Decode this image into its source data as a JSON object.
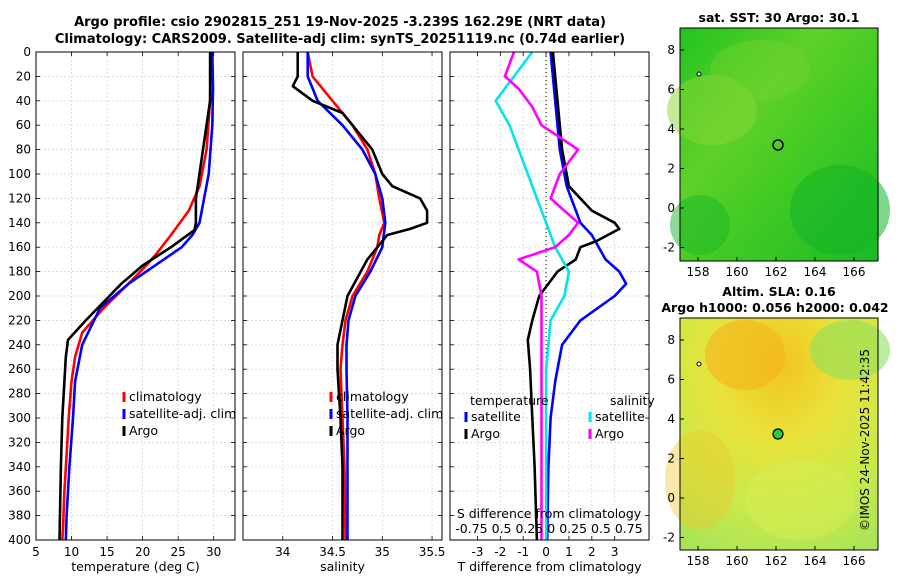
{
  "header": {
    "title_line1": "Argo profile: csio 2902815_251 19-Nov-2025 -3.239S 162.29E (NRT data)",
    "title_line2": "Climatology: CARS2009. Satellite-adj clim: synTS_20251119.nc (0.74d earlier)"
  },
  "maps": {
    "sst_title": "sat. SST: 30 Argo: 30.1",
    "sla_title_line1": "Altim. SLA: 0.16",
    "sla_title_line2": "Argo h1000: 0.056 h2000: 0.042",
    "x_ticks": [
      "158",
      "160",
      "162",
      "164",
      "166"
    ],
    "y_ticks": [
      "8",
      "6",
      "4",
      "2",
      "0",
      "-2"
    ]
  },
  "credit": "©IMOS 24-Nov-2025 11:42:35",
  "colors": {
    "climatology": "#ff0000",
    "satellite": "#0000ff",
    "argo": "#000000",
    "sal_satellite": "#00e5ee",
    "sal_argo": "#ff00ff"
  },
  "chart_data": [
    {
      "type": "line",
      "name": "temperature",
      "xlabel": "temperature (deg C)",
      "ylabel": "",
      "xlim": [
        5,
        33
      ],
      "ylim": [
        400,
        0
      ],
      "x_ticks": [
        5,
        10,
        15,
        20,
        25,
        30
      ],
      "y_ticks": [
        0,
        20,
        40,
        60,
        80,
        100,
        120,
        140,
        160,
        180,
        200,
        220,
        240,
        260,
        280,
        300,
        320,
        340,
        360,
        380,
        400
      ],
      "legend": [
        "climatology",
        "satellite-adj. clim",
        "Argo"
      ],
      "series": [
        {
          "name": "climatology",
          "depth": [
            0,
            40,
            80,
            110,
            130,
            150,
            165,
            175,
            190,
            210,
            230,
            250,
            270,
            300,
            330,
            360,
            390,
            400
          ],
          "values": [
            29.6,
            29.5,
            29,
            28,
            26.5,
            24,
            22,
            20.5,
            18,
            14.5,
            11.5,
            10.5,
            10,
            9.6,
            9.3,
            9,
            8.8,
            8.7
          ]
        },
        {
          "name": "satellite-adj. clim",
          "depth": [
            0,
            30,
            60,
            100,
            140,
            150,
            160,
            170,
            190,
            210,
            240,
            270,
            300,
            340,
            380,
            400
          ],
          "values": [
            29.8,
            29.9,
            29.8,
            29.3,
            28,
            27,
            25.5,
            23,
            18,
            14,
            11.5,
            10.5,
            10.2,
            9.7,
            9.3,
            9.2
          ]
        },
        {
          "name": "Argo",
          "depth": [
            0,
            40,
            80,
            120,
            140,
            146,
            160,
            175,
            190,
            205,
            220,
            236,
            250,
            270,
            300,
            340,
            370,
            400
          ],
          "values": [
            29.5,
            29.5,
            28.5,
            27.5,
            27.5,
            27.3,
            24,
            20,
            17,
            14.5,
            12,
            9.5,
            9.2,
            9,
            8.7,
            8.5,
            8.4,
            8.3
          ]
        }
      ]
    },
    {
      "type": "line",
      "name": "salinity",
      "xlabel": "salinity",
      "xlim": [
        33.6,
        35.6
      ],
      "ylim": [
        400,
        0
      ],
      "x_ticks": [
        34,
        34.5,
        35,
        35.5
      ],
      "legend": [
        "climatology",
        "satellite-adj. clim",
        "Argo"
      ],
      "series": [
        {
          "name": "climatology",
          "depth": [
            0,
            20,
            40,
            60,
            80,
            100,
            120,
            140,
            150,
            160,
            180,
            200,
            220,
            240,
            260,
            300,
            340,
            400
          ],
          "values": [
            34.25,
            34.3,
            34.5,
            34.7,
            34.85,
            34.93,
            34.97,
            35.02,
            34.97,
            34.95,
            34.85,
            34.7,
            34.63,
            34.6,
            34.58,
            34.6,
            34.62,
            34.63
          ]
        },
        {
          "name": "satellite-adj. clim",
          "depth": [
            0,
            20,
            40,
            60,
            80,
            100,
            120,
            140,
            160,
            180,
            200,
            220,
            240,
            260,
            300,
            340,
            400
          ],
          "values": [
            34.25,
            34.25,
            34.35,
            34.6,
            34.8,
            34.93,
            35.0,
            35.03,
            35.0,
            34.88,
            34.73,
            34.66,
            34.64,
            34.64,
            34.65,
            34.65,
            34.65
          ]
        },
        {
          "name": "Argo",
          "depth": [
            0,
            20,
            28,
            40,
            50,
            60,
            70,
            80,
            100,
            110,
            120,
            130,
            140,
            145,
            150,
            170,
            185,
            200,
            220,
            240,
            260,
            300,
            340,
            400
          ],
          "values": [
            34.15,
            34.15,
            34.1,
            34.3,
            34.6,
            34.7,
            34.8,
            34.9,
            35.0,
            35.1,
            35.38,
            35.45,
            35.45,
            35.28,
            35.05,
            34.85,
            34.75,
            34.65,
            34.6,
            34.55,
            34.55,
            34.58,
            34.6,
            34.6
          ]
        }
      ]
    },
    {
      "type": "line",
      "name": "difference",
      "xlabel": "T difference from climatology",
      "top_xlabel": "S difference from climatology",
      "xlim": [
        -4.2,
        4.5
      ],
      "ylim": [
        400,
        0
      ],
      "x_ticks": [
        -3,
        -2,
        -1,
        0,
        1,
        2,
        3
      ],
      "top_ticks": [
        "-0.75",
        "0.5",
        "0.25",
        "0",
        "0.25",
        "0.5",
        "0.75"
      ],
      "legend_titles": [
        "temperature",
        "salinity"
      ],
      "legend": [
        "satellite",
        "Argo",
        "satellite",
        "Argo"
      ],
      "series": [
        {
          "name": "temperature satellite",
          "depth": [
            0,
            40,
            80,
            110,
            140,
            150,
            160,
            170,
            180,
            190,
            200,
            220,
            240,
            270,
            300,
            340,
            400
          ],
          "values": [
            0.2,
            0.4,
            0.6,
            0.9,
            1.5,
            2,
            2.3,
            2.6,
            3.2,
            3.5,
            3,
            1.5,
            0.7,
            0.4,
            0.2,
            0.1,
            0.05
          ]
        },
        {
          "name": "temperature Argo",
          "depth": [
            0,
            40,
            80,
            110,
            130,
            140,
            145,
            155,
            160,
            170,
            180,
            200,
            220,
            236,
            260,
            300,
            340,
            400
          ],
          "values": [
            0.3,
            0.5,
            0.7,
            1,
            2,
            3,
            3.2,
            2.2,
            1.5,
            1.3,
            0.5,
            -0.3,
            -0.6,
            -0.8,
            -0.7,
            -0.6,
            -0.5,
            -0.4
          ]
        },
        {
          "name": "salinity satellite",
          "depth": [
            0,
            20,
            40,
            60,
            80,
            100,
            120,
            140,
            160,
            180,
            200,
            220,
            260,
            300,
            340,
            400
          ],
          "values": [
            -0.15,
            -0.35,
            -0.55,
            -0.4,
            -0.3,
            -0.2,
            -0.1,
            0,
            0.1,
            0.25,
            0.2,
            0.05,
            0,
            0,
            0,
            0
          ]
        },
        {
          "name": "salinity Argo",
          "depth": [
            0,
            20,
            30,
            45,
            60,
            80,
            100,
            120,
            140,
            150,
            160,
            170,
            180,
            200,
            240,
            300,
            400
          ],
          "values": [
            -0.35,
            -0.45,
            -0.3,
            -0.15,
            -0.05,
            0.35,
            0.15,
            0.05,
            0.35,
            0.25,
            0.1,
            -0.3,
            -0.1,
            -0.05,
            -0.05,
            -0.05,
            -0.05
          ]
        }
      ]
    }
  ]
}
